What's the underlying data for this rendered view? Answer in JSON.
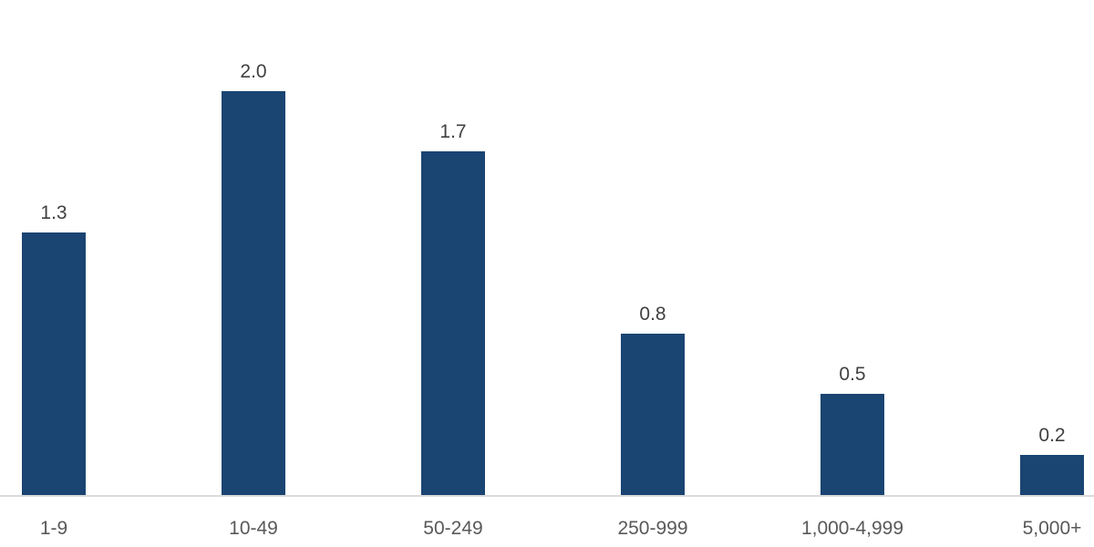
{
  "chart_data": {
    "type": "bar",
    "categories": [
      "1-9",
      "10-49",
      "50-249",
      "250-999",
      "1,000-4,999",
      "5,000+"
    ],
    "values": [
      1.3,
      2.0,
      1.7,
      0.8,
      0.5,
      0.2
    ],
    "value_labels": [
      "1.3",
      "2.0",
      "1.7",
      "0.8",
      "0.5",
      "0.2"
    ],
    "title": "",
    "xlabel": "",
    "ylabel": "",
    "ylim": [
      0,
      2.45
    ],
    "grid": false,
    "legend": false,
    "colors": {
      "bar": "#1A4472",
      "value_label": "#404040",
      "category_label": "#595959",
      "axis_line": "#DBDBDB"
    }
  }
}
